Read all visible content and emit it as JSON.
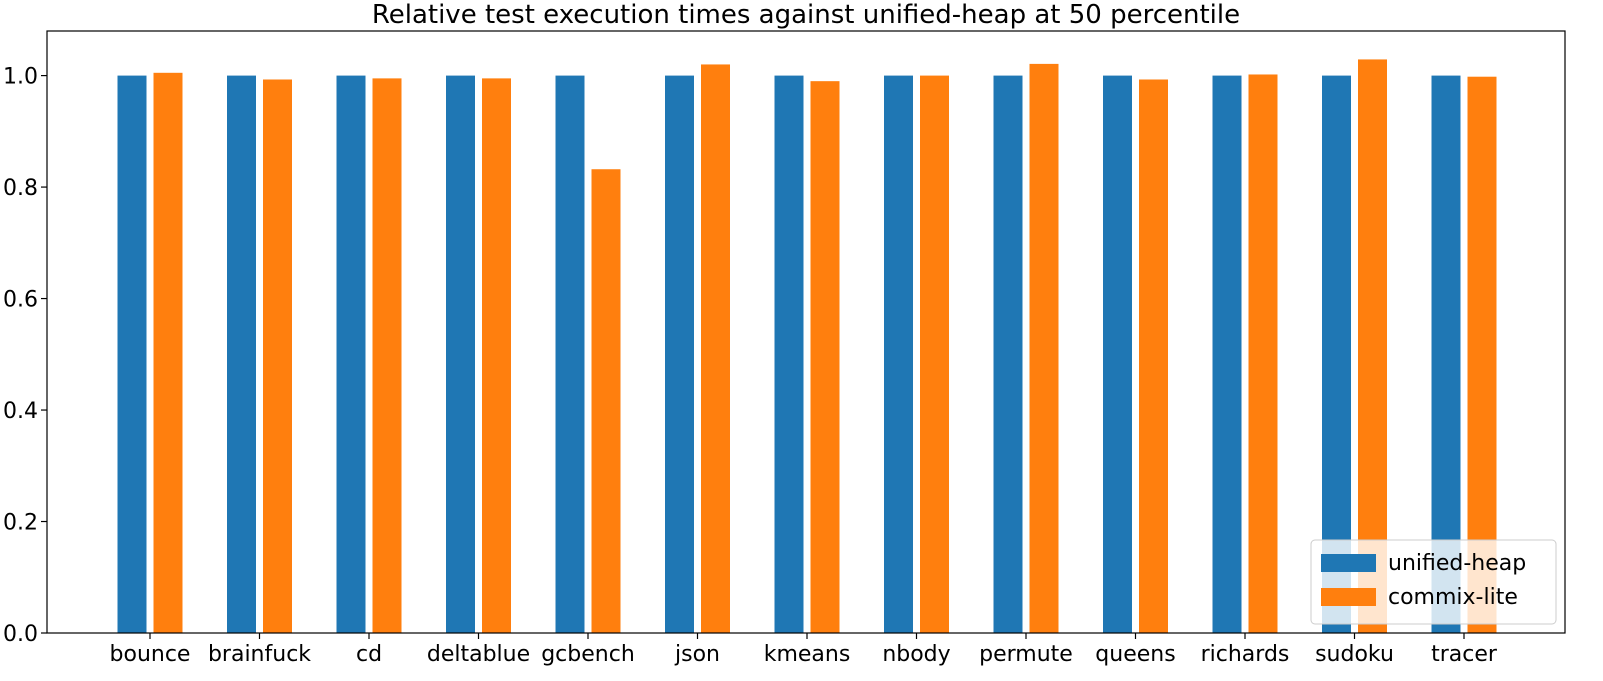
{
  "chart_data": {
    "type": "bar",
    "title": "Relative test execution times against unified-heap at 50 percentile",
    "xlabel": "",
    "ylabel": "",
    "ylim": [
      0,
      1.08
    ],
    "yticks": [
      "0.0",
      "0.2",
      "0.4",
      "0.6",
      "0.8",
      "1.0"
    ],
    "grid": false,
    "legend_position": "bottom-right",
    "categories": [
      "bounce",
      "brainfuck",
      "cd",
      "deltablue",
      "gcbench",
      "json",
      "kmeans",
      "nbody",
      "permute",
      "queens",
      "richards",
      "sudoku",
      "tracer"
    ],
    "series": [
      {
        "name": "unified-heap",
        "color": "#1f77b4",
        "values": [
          1.0,
          1.0,
          1.0,
          1.0,
          1.0,
          1.0,
          1.0,
          1.0,
          1.0,
          1.0,
          1.0,
          1.0,
          1.0
        ]
      },
      {
        "name": "commix-lite",
        "color": "#ff7f0e",
        "values": [
          1.005,
          0.993,
          0.995,
          0.995,
          0.832,
          1.02,
          0.99,
          1.0,
          1.021,
          0.993,
          1.002,
          1.029,
          0.998
        ]
      }
    ]
  }
}
